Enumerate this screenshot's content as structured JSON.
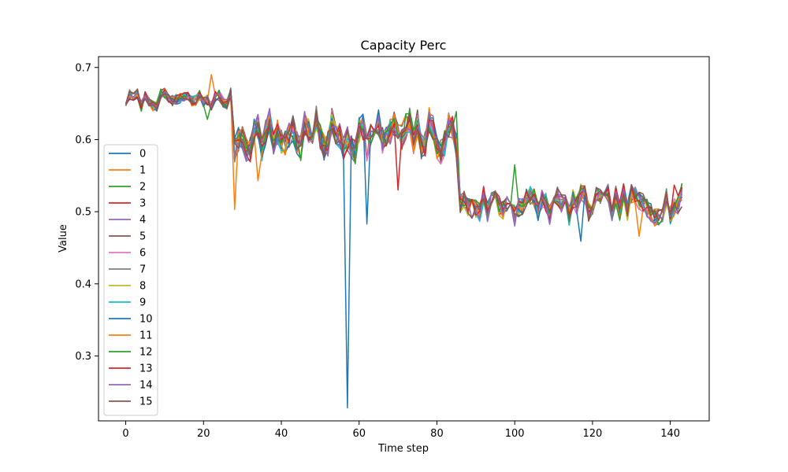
{
  "chart_data": {
    "type": "line",
    "title": "Capacity Perc",
    "xlabel": "Time step",
    "ylabel": "Value",
    "xlim": [
      -7,
      150
    ],
    "ylim": [
      0.21,
      0.715
    ],
    "xticks": [
      0,
      20,
      40,
      60,
      80,
      100,
      120,
      140
    ],
    "yticks": [
      0.3,
      0.4,
      0.5,
      0.6,
      0.7
    ],
    "legend_position": "lower-left",
    "segments": [
      {
        "start": 0,
        "end": 27,
        "base": 0.655,
        "amp": 0.012
      },
      {
        "start": 28,
        "end": 85,
        "base": 0.605,
        "amp": 0.03
      },
      {
        "start": 86,
        "end": 143,
        "base": 0.51,
        "amp": 0.022
      }
    ],
    "series": [
      {
        "name": "0",
        "color": "#1f77b4"
      },
      {
        "name": "1",
        "color": "#ff7f0e"
      },
      {
        "name": "2",
        "color": "#2ca02c"
      },
      {
        "name": "3",
        "color": "#d62728"
      },
      {
        "name": "4",
        "color": "#9467bd"
      },
      {
        "name": "5",
        "color": "#8c564b"
      },
      {
        "name": "6",
        "color": "#e377c2"
      },
      {
        "name": "7",
        "color": "#7f7f7f"
      },
      {
        "name": "8",
        "color": "#bcbd22"
      },
      {
        "name": "9",
        "color": "#17becf"
      },
      {
        "name": "10",
        "color": "#1f77b4",
        "spikes": [
          [
            57,
            0.228
          ],
          [
            62,
            0.483
          ],
          [
            65,
            0.641
          ],
          [
            117,
            0.459
          ]
        ]
      },
      {
        "name": "11",
        "color": "#ff7f0e",
        "spikes": [
          [
            28,
            0.503
          ],
          [
            34,
            0.543
          ],
          [
            22,
            0.69
          ],
          [
            132,
            0.466
          ]
        ]
      },
      {
        "name": "12",
        "color": "#2ca02c",
        "spikes": [
          [
            21,
            0.628
          ],
          [
            85,
            0.639
          ],
          [
            100,
            0.565
          ]
        ]
      },
      {
        "name": "13",
        "color": "#d62728",
        "spikes": [
          [
            70,
            0.53
          ],
          [
            141,
            0.537
          ]
        ]
      },
      {
        "name": "14",
        "color": "#9467bd",
        "spikes": [
          [
            27,
            0.662
          ],
          [
            100,
            0.48
          ]
        ]
      },
      {
        "name": "15",
        "color": "#8c564b",
        "spikes": [
          [
            143,
            0.507
          ]
        ]
      }
    ]
  }
}
